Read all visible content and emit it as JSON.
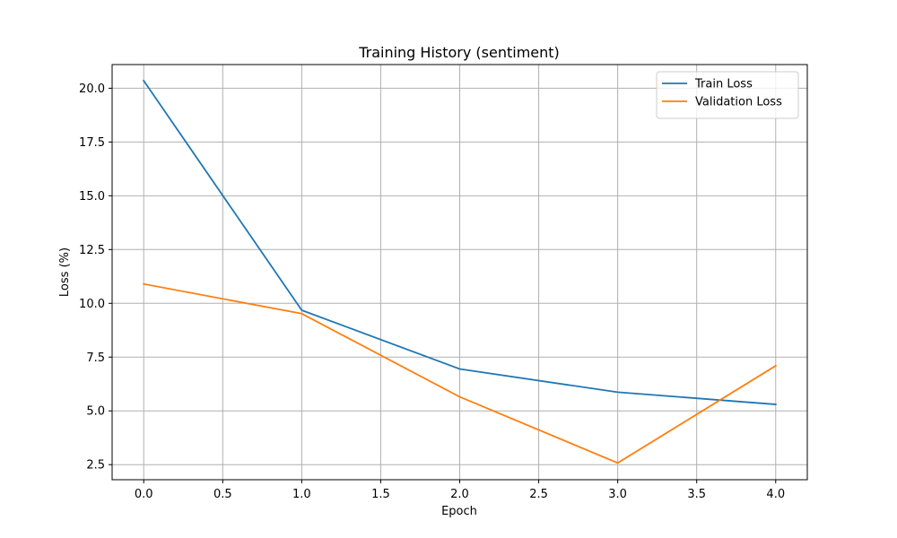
{
  "chart_data": {
    "type": "line",
    "title": "Training History (sentiment)",
    "xlabel": "Epoch",
    "ylabel": "Loss (%)",
    "x": [
      0,
      1,
      2,
      3,
      4
    ],
    "xlim": [
      -0.2,
      4.2
    ],
    "ylim": [
      1.8,
      21.1
    ],
    "xticks": [
      0.0,
      0.5,
      1.0,
      1.5,
      2.0,
      2.5,
      3.0,
      3.5,
      4.0
    ],
    "xtick_labels": [
      "0.0",
      "0.5",
      "1.0",
      "1.5",
      "2.0",
      "2.5",
      "3.0",
      "3.5",
      "4.0"
    ],
    "yticks": [
      2.5,
      5.0,
      7.5,
      10.0,
      12.5,
      15.0,
      17.5,
      20.0
    ],
    "ytick_labels": [
      "2.5",
      "5.0",
      "7.5",
      "10.0",
      "12.5",
      "15.0",
      "17.5",
      "20.0"
    ],
    "grid": true,
    "legend_position": "top-right",
    "series": [
      {
        "name": "Train Loss",
        "color": "#1f77b4",
        "values": [
          20.35,
          9.68,
          6.95,
          5.87,
          5.3
        ]
      },
      {
        "name": "Validation Loss",
        "color": "#ff7f0e",
        "values": [
          10.9,
          9.52,
          5.65,
          2.58,
          7.1
        ]
      }
    ]
  }
}
